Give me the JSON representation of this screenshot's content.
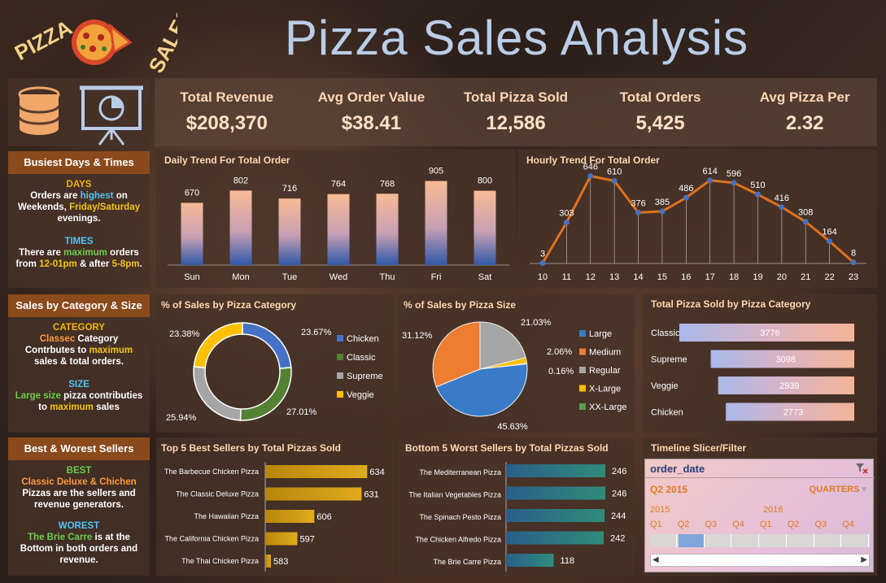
{
  "logo": {
    "word1": "PIZZA",
    "word2": "SALES"
  },
  "title": "Pizza Sales Analysis",
  "kpis": [
    {
      "label": "Total Revenue",
      "value": "$208,370"
    },
    {
      "label": "Avg Order Value",
      "value": "$38.41"
    },
    {
      "label": "Total Pizza Sold",
      "value": "12,586"
    },
    {
      "label": "Total Orders",
      "value": "5,425"
    },
    {
      "label": "Avg Pizza Per",
      "value": "2.32"
    }
  ],
  "side": {
    "busiest": {
      "header": "Busiest Days & Times",
      "days_h": "DAYS",
      "days_1": "Orders are ",
      "days_hl": "highest",
      "days_2": " on Weekends, ",
      "days_hl2": "Friday/Saturday",
      "days_3": " evenings.",
      "times_h": "TIMES",
      "times_1": "There are ",
      "times_hl": "maximum",
      "times_2": " orders from ",
      "times_hl2": "12-01pm",
      "times_3": " & after ",
      "times_hl3": "5-8pm",
      "times_4": "."
    },
    "category": {
      "header": "Sales by Category & Size",
      "cat_h": "CATEGORY",
      "cat_hl": "Classec",
      "cat_1": " Category Contrbutes to ",
      "cat_hl2": "maximum",
      "cat_2": " sales & total orders.",
      "size_h": "SIZE",
      "size_hl": "Large size",
      "size_1": " pizza contributies to ",
      "size_hl2": "maximum",
      "size_2": " sales"
    },
    "sellers": {
      "header": "Best & Worest Sellers",
      "best_h": "BEST",
      "best_hl": "Classic Deluxe & Chichen",
      "best_1": "Pizzas are the sellers and revenue generators.",
      "worst_h": "WOREST",
      "worst_hl": "The Brie Carre",
      "worst_1": " is at the Bottom in both orders and revenue."
    }
  },
  "panels": {
    "daily": "Daily Trend For Total Order",
    "hourly": "Hourly Trend For Total Order",
    "cat_pct": "% of Sales by Pizza Category",
    "size_pct": "% of Sales by Pizza Size",
    "cat_total": "Total Pizza Sold by Pizza Category",
    "best": "Top 5 Best Sellers by Total Pizzas Sold",
    "worst": "Bottom 5 Worst Sellers by Total Pizzas Sold",
    "timeline": "Timeline Slicer/Filter"
  },
  "timeline": {
    "field": "order_date",
    "selected": "Q2 2015",
    "level": "QUARTERS",
    "years": [
      "2015",
      "2016"
    ],
    "quarters": [
      "Q1",
      "Q2",
      "Q3",
      "Q4",
      "Q1",
      "Q2",
      "Q3",
      "Q4"
    ],
    "selected_index": 1
  },
  "chart_data": [
    {
      "type": "bar",
      "title": "Daily Trend For Total Order",
      "categories": [
        "Sun",
        "Mon",
        "Tue",
        "Wed",
        "Thu",
        "Fri",
        "Sat"
      ],
      "values": [
        670,
        802,
        716,
        764,
        768,
        905,
        800
      ]
    },
    {
      "type": "line",
      "title": "Hourly Trend For Total Order",
      "x": [
        10,
        11,
        12,
        13,
        14,
        15,
        16,
        17,
        18,
        19,
        20,
        21,
        22,
        23
      ],
      "values": [
        3,
        303,
        646,
        610,
        376,
        385,
        486,
        614,
        596,
        510,
        416,
        308,
        164,
        8
      ],
      "color": "#e0711c"
    },
    {
      "type": "pie",
      "title": "% of Sales by Pizza Category",
      "donut": true,
      "labels": [
        "Chicken",
        "Classic",
        "Supreme",
        "Veggie"
      ],
      "values": [
        23.67,
        27.01,
        25.94,
        23.38
      ],
      "display": [
        "23.67%",
        "27.01%",
        "25.94%",
        "23.38%"
      ],
      "colors": [
        "#4472c4",
        "#548235",
        "#a5a5a5",
        "#ffc000"
      ]
    },
    {
      "type": "pie",
      "title": "% of Sales by Pizza Size",
      "labels": [
        "Large",
        "Medium",
        "Regular",
        "X-Large",
        "XX-Large"
      ],
      "values": [
        45.63,
        31.12,
        21.03,
        2.06,
        0.16
      ],
      "display": [
        "45.63%",
        "31.12%",
        "21.03%",
        "2.06%",
        "0.16%"
      ],
      "colors": [
        "#3a7bc8",
        "#ed7d31",
        "#a5a5a5",
        "#ffc000",
        "#5b9b4f"
      ]
    },
    {
      "type": "bar",
      "title": "Total Pizza Sold by Pizza Category",
      "orientation": "horizontal",
      "categories": [
        "Classic",
        "Supreme",
        "Veggie",
        "Chicken"
      ],
      "values": [
        3776,
        3098,
        2939,
        2773
      ]
    },
    {
      "type": "bar",
      "title": "Top 5 Best Sellers by Total Pizzas Sold",
      "orientation": "horizontal",
      "categories": [
        "The Barbecue Chicken Pizza",
        "The Classic Deluxe Pizza",
        "The Hawaiian Pizza",
        "The California Chicken Pizza",
        "The Thai Chicken Pizza"
      ],
      "values": [
        634,
        631,
        606,
        597,
        583
      ],
      "xlim": [
        580,
        636
      ],
      "color": "#d4a017"
    },
    {
      "type": "bar",
      "title": "Bottom 5 Worst Sellers by Total Pizzas Sold",
      "orientation": "horizontal",
      "categories": [
        "The Mediterranean Pizza",
        "The Italian Vegetables Pizza",
        "The Spinach Pesto Pizza",
        "The Chicken Alfredo Pizza",
        "The Brie Carre Pizza"
      ],
      "values": [
        246,
        246,
        244,
        242,
        118
      ],
      "xlim": [
        0,
        246
      ],
      "color": "#2e7d8c"
    }
  ]
}
